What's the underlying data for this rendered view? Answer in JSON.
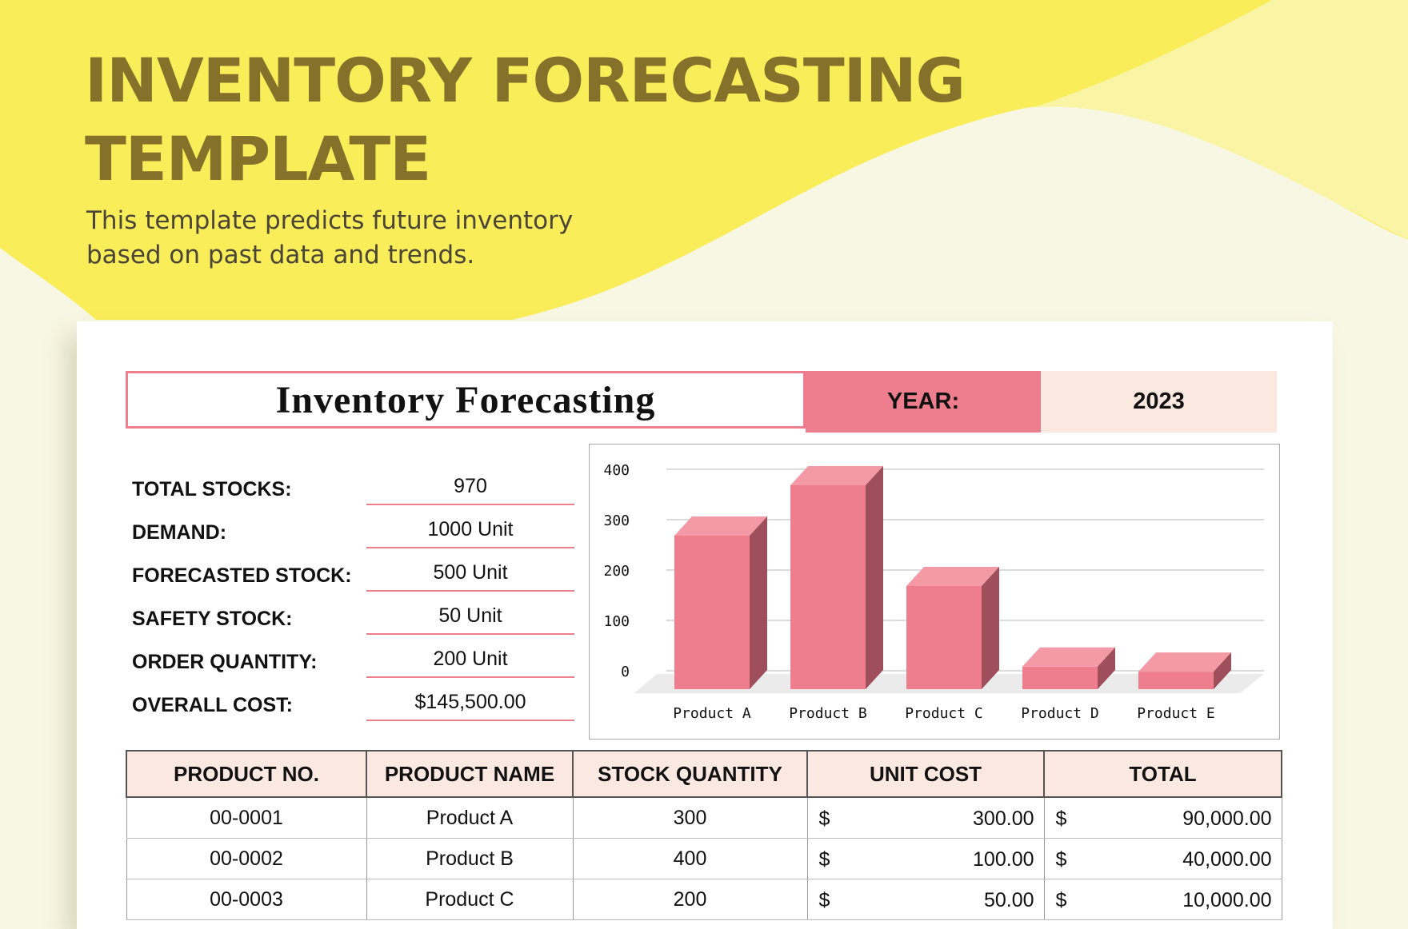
{
  "colors": {
    "accent_pink": "#ee7e8d",
    "header_title": "#85712a",
    "yellow": "#f9ed5a",
    "light_peach": "#fbe9e1"
  },
  "header": {
    "title_line1": "INVENTORY FORECASTING",
    "title_line2": "TEMPLATE",
    "subtitle_line1": "This template predicts future inventory",
    "subtitle_line2": "based on past data and trends."
  },
  "sheet": {
    "title": "Inventory Forecasting",
    "year_label": "YEAR:",
    "year_value": "2023"
  },
  "summary": [
    {
      "label": "TOTAL STOCKS:",
      "value": "970"
    },
    {
      "label": "DEMAND:",
      "value": "1000 Unit"
    },
    {
      "label": "FORECASTED STOCK:",
      "value": "500 Unit"
    },
    {
      "label": "SAFETY STOCK:",
      "value": "50 Unit"
    },
    {
      "label": "ORDER QUANTITY:",
      "value": "200 Unit"
    },
    {
      "label": "OVERALL COST:",
      "value": "$145,500.00"
    }
  ],
  "chart_data": {
    "type": "bar",
    "categories": [
      "Product A",
      "Product B",
      "Product C",
      "Product D",
      "Product E"
    ],
    "values": [
      300,
      400,
      200,
      40,
      30
    ],
    "ylim": [
      0,
      400
    ],
    "yticks": [
      0,
      100,
      200,
      300,
      400
    ],
    "grid": true,
    "style": "3d-column",
    "color": "#ee7e8d"
  },
  "table": {
    "headers": [
      "PRODUCT NO.",
      "PRODUCT NAME",
      "STOCK QUANTITY",
      "UNIT COST",
      "TOTAL"
    ],
    "currency": "$",
    "rows": [
      {
        "no": "00-0001",
        "name": "Product A",
        "qty": "300",
        "unit_cost": "300.00",
        "total": "90,000.00"
      },
      {
        "no": "00-0002",
        "name": "Product B",
        "qty": "400",
        "unit_cost": "100.00",
        "total": "40,000.00"
      },
      {
        "no": "00-0003",
        "name": "Product C",
        "qty": "200",
        "unit_cost": "50.00",
        "total": "10,000.00"
      }
    ]
  }
}
